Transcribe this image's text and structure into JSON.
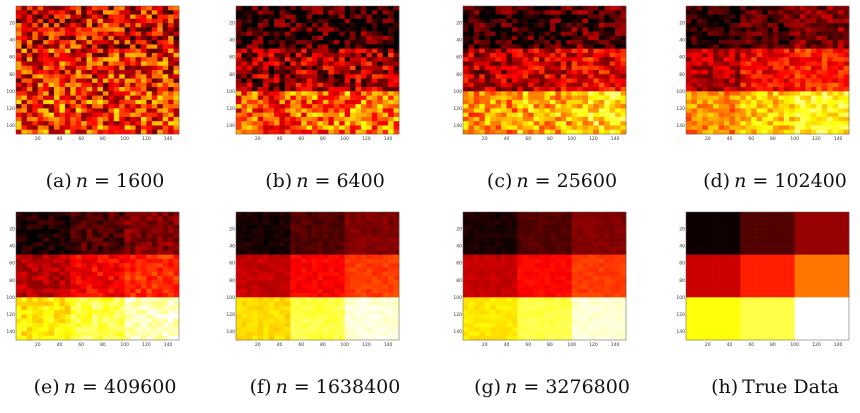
{
  "chart_data": {
    "type": "heatmap",
    "x_ticks": [
      "20",
      "40",
      "60",
      "80",
      "100",
      "120",
      "140"
    ],
    "y_ticks": [
      "20",
      "40",
      "60",
      "80",
      "100",
      "120",
      "140"
    ],
    "xlim": [
      0,
      150
    ],
    "ylim": [
      0,
      150
    ],
    "block_edges": [
      0,
      50,
      100,
      150
    ],
    "panels": [
      {
        "letter": "(a)",
        "var": "n",
        "eq": " = ",
        "value": "1600",
        "noise": 0.55,
        "blocks": [
          [
            0.34,
            0.34,
            0.34
          ],
          [
            0.4,
            0.4,
            0.4
          ],
          [
            0.44,
            0.44,
            0.44
          ]
        ]
      },
      {
        "letter": "(b)",
        "var": "n",
        "eq": " = ",
        "value": "6400",
        "noise": 0.45,
        "blocks": [
          [
            0.05,
            0.06,
            0.07
          ],
          [
            0.22,
            0.24,
            0.26
          ],
          [
            0.48,
            0.52,
            0.55
          ]
        ]
      },
      {
        "letter": "(c)",
        "var": "n",
        "eq": " = ",
        "value": "25600",
        "noise": 0.35,
        "blocks": [
          [
            0.07,
            0.09,
            0.12
          ],
          [
            0.27,
            0.31,
            0.35
          ],
          [
            0.58,
            0.64,
            0.7
          ]
        ]
      },
      {
        "letter": "(d)",
        "var": "n",
        "eq": " = ",
        "value": "102400",
        "noise": 0.25,
        "blocks": [
          [
            0.05,
            0.12,
            0.19
          ],
          [
            0.27,
            0.37,
            0.42
          ],
          [
            0.58,
            0.68,
            0.76
          ]
        ]
      },
      {
        "letter": "(e)",
        "var": "n",
        "eq": " = ",
        "value": "409600",
        "noise": 0.15,
        "blocks": [
          [
            0.04,
            0.12,
            0.19
          ],
          [
            0.27,
            0.37,
            0.44
          ],
          [
            0.72,
            0.82,
            0.94
          ]
        ]
      },
      {
        "letter": "(f)",
        "var": "n",
        "eq": " = ",
        "value": "1638400",
        "noise": 0.07,
        "blocks": [
          [
            0.04,
            0.12,
            0.19
          ],
          [
            0.29,
            0.37,
            0.46
          ],
          [
            0.7,
            0.82,
            0.96
          ]
        ]
      },
      {
        "letter": "(g)",
        "var": "n",
        "eq": " = ",
        "value": "3276800",
        "noise": 0.05,
        "blocks": [
          [
            0.04,
            0.12,
            0.19
          ],
          [
            0.29,
            0.38,
            0.46
          ],
          [
            0.72,
            0.82,
            0.96
          ]
        ]
      },
      {
        "letter": "(h)",
        "var": "",
        "eq": "",
        "value": "True Data",
        "noise": 0.0,
        "blocks": [
          [
            0.02,
            0.12,
            0.22
          ],
          [
            0.3,
            0.42,
            0.55
          ],
          [
            0.76,
            0.82,
            1.0
          ]
        ]
      }
    ]
  }
}
